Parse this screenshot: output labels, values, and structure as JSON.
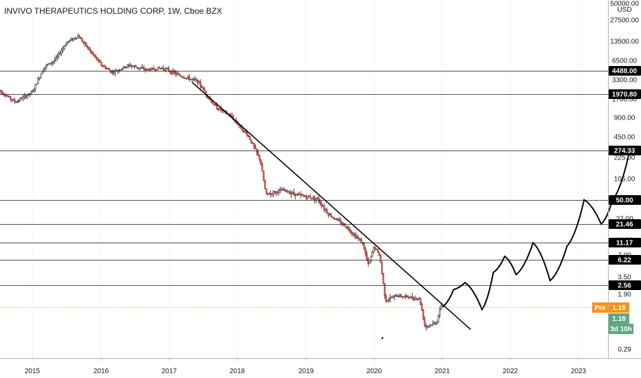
{
  "header": {
    "symbol": "INVIVO THERAPEUTICS HOLDING CORP",
    "interval": "1W",
    "exchange": "Cboe BZX",
    "separator": ", "
  },
  "chart_data": {
    "type": "candlestick",
    "title": "INVIVO THERAPEUTICS HOLDING CORP, 1W, Cboe BZX",
    "y_scale": "log",
    "y_unit": "USD",
    "y_tick_labels": [
      "50000.00",
      "27500.00",
      "13500.00",
      "6500.00",
      "3300.00",
      "1700.00",
      "900.00",
      "450.00",
      "225.00",
      "105.00",
      "50.00",
      "27.00",
      "12.00",
      "7.00",
      "3.50",
      "1.90",
      "0.60",
      "0.29"
    ],
    "x_tick_labels": [
      "2015",
      "2016",
      "2017",
      "2018",
      "2019",
      "2020",
      "2021",
      "2022",
      "2023"
    ],
    "horizontal_levels": [
      4488.0,
      1970.8,
      274.33,
      50.0,
      21.46,
      11.17,
      6.22,
      2.56
    ],
    "level_labels": [
      "4488.00",
      "1970.80",
      "274.33",
      "50.00",
      "21.46",
      "11.17",
      "6.22",
      "2.56"
    ],
    "price_path": [
      [
        "2014-07",
        2300
      ],
      [
        "2014-10",
        1500
      ],
      [
        "2015-01",
        2100
      ],
      [
        "2015-03",
        5000
      ],
      [
        "2015-05",
        6500
      ],
      [
        "2015-07",
        12000
      ],
      [
        "2015-09",
        15000
      ],
      [
        "2015-11",
        9000
      ],
      [
        "2016-01",
        5500
      ],
      [
        "2016-03",
        4200
      ],
      [
        "2016-06",
        5400
      ],
      [
        "2016-09",
        4600
      ],
      [
        "2016-12",
        4900
      ],
      [
        "2017-03",
        3700
      ],
      [
        "2017-06",
        3100
      ],
      [
        "2017-09",
        1300
      ],
      [
        "2017-12",
        900
      ],
      [
        "2018-03",
        450
      ],
      [
        "2018-05",
        200
      ],
      [
        "2018-06",
        60
      ],
      [
        "2018-09",
        70
      ],
      [
        "2018-12",
        58
      ],
      [
        "2019-03",
        52
      ],
      [
        "2019-05",
        30
      ],
      [
        "2019-08",
        20
      ],
      [
        "2019-11",
        11
      ],
      [
        "2019-12",
        5
      ],
      [
        "2020-01",
        10
      ],
      [
        "2020-02",
        7
      ],
      [
        "2020-03",
        1.5
      ],
      [
        "2020-05",
        1.8
      ],
      [
        "2020-09",
        1.6
      ],
      [
        "2020-10",
        0.6
      ],
      [
        "2020-12",
        0.7
      ],
      [
        "2021-01",
        1.5
      ]
    ],
    "trendline": [
      [
        "2017-05",
        3000
      ],
      [
        "2021-06",
        0.55
      ]
    ],
    "projection_path": [
      [
        "2021-01",
        1.2
      ],
      [
        "2021-03",
        2.2
      ],
      [
        "2021-05",
        2.8
      ],
      [
        "2021-08",
        1.1
      ],
      [
        "2021-10",
        4.0
      ],
      [
        "2021-12",
        7.0
      ],
      [
        "2022-02",
        3.7
      ],
      [
        "2022-05",
        11.2
      ],
      [
        "2022-08",
        3.0
      ],
      [
        "2022-11",
        10.0
      ],
      [
        "2023-02",
        50.0
      ],
      [
        "2023-05",
        21.5
      ],
      [
        "2023-07",
        50.0
      ],
      [
        "2023-10",
        274.3
      ]
    ],
    "badges": [
      {
        "text": "1.19",
        "prefix": "Pre",
        "color": "#f7931a",
        "value": 1.19
      },
      {
        "text": "1.18",
        "prefix": "",
        "color": "#5fa77d",
        "value": 1.18
      },
      {
        "text": "3d 10h",
        "prefix": "",
        "color": "#5fa77d",
        "value": 0.72
      }
    ],
    "grid": true,
    "legend": "none"
  },
  "colors": {
    "up": "#26a69a",
    "down": "#ef5350",
    "bg": "#ffffff",
    "axis": "#131722",
    "hline": "#131722",
    "pre": "#f7931a",
    "last": "#5fa77d"
  }
}
